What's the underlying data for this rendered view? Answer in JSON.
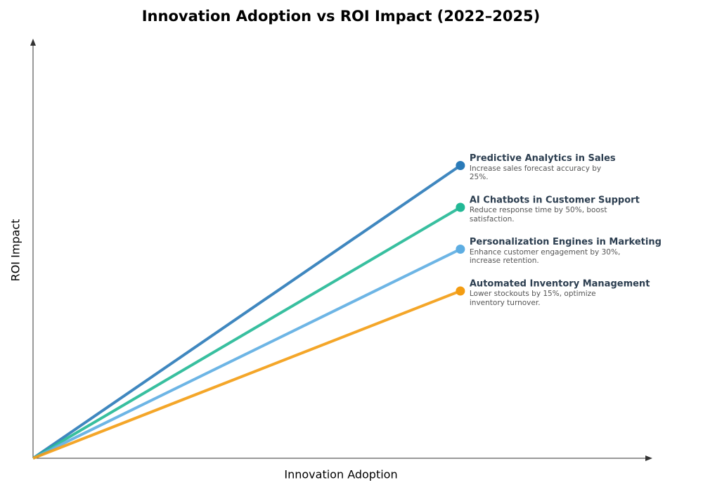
{
  "chart_data": {
    "type": "line",
    "title": "Innovation Adoption vs ROI Impact (2022–2025)",
    "x_label": "Innovation Adoption",
    "y_label": "ROI Impact",
    "xlim": [
      0,
      1
    ],
    "ylim": [
      0,
      1
    ],
    "x": [
      0,
      0.69
    ],
    "series": [
      {
        "name": "Predictive Analytics in Sales",
        "color": "#2a7ab8",
        "values": [
          0,
          0.7
        ],
        "description": "Increase sales forecast accuracy by 25%."
      },
      {
        "name": "AI Chatbots in Customer Support",
        "color": "#22b895",
        "values": [
          0,
          0.6
        ],
        "description": "Reduce response time by 50%, boost satisfaction."
      },
      {
        "name": "Personalization Engines in Marketing",
        "color": "#5dade2",
        "values": [
          0,
          0.5
        ],
        "description": "Enhance customer engagement by 30%, increase retention."
      },
      {
        "name": "Automated Inventory Management",
        "color": "#f39c12",
        "values": [
          0,
          0.4
        ],
        "description": "Lower stockouts by 15%, optimize inventory turnover."
      }
    ]
  }
}
